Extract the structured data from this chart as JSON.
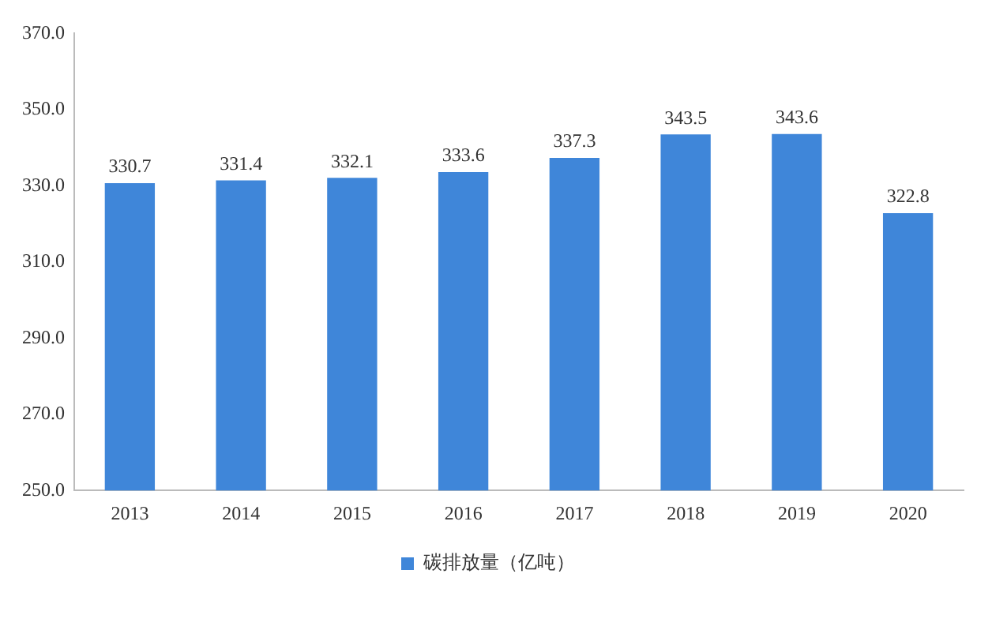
{
  "chart_data": {
    "type": "bar",
    "categories": [
      "2013",
      "2014",
      "2015",
      "2016",
      "2017",
      "2018",
      "2019",
      "2020"
    ],
    "series": [
      {
        "name": "碳排放量（亿吨）",
        "color": "#3f86d9",
        "values": [
          330.7,
          331.4,
          332.1,
          333.6,
          337.3,
          343.5,
          343.6,
          322.8
        ]
      }
    ],
    "ylim": [
      250,
      370
    ],
    "yticks": [
      {
        "value": 250,
        "label": "250.0"
      },
      {
        "value": 270,
        "label": "270.0"
      },
      {
        "value": 290,
        "label": "290.0"
      },
      {
        "value": 310,
        "label": "310.0"
      },
      {
        "value": 330,
        "label": "330.0"
      },
      {
        "value": 350,
        "label": "350.0"
      },
      {
        "value": 370,
        "label": "370.0"
      }
    ],
    "data_labels": true,
    "grid": false,
    "legend": "bottom"
  }
}
